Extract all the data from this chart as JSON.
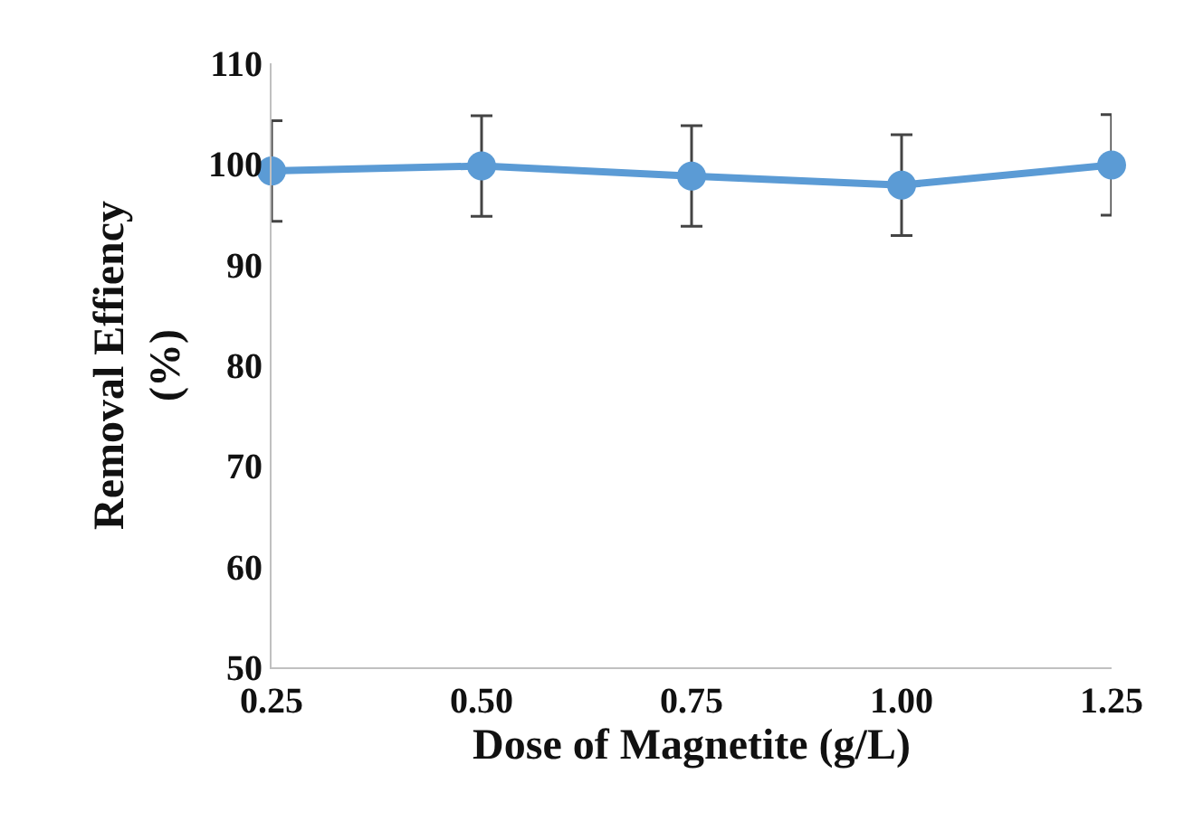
{
  "chart_data": {
    "type": "line",
    "xlabel": "Dose of Magnetite (g/L)",
    "ylabel": "Removal Effiency\n(%)",
    "x": [
      0.25,
      0.5,
      0.75,
      1.0,
      1.25
    ],
    "series": [
      {
        "color": "#5b9bd5",
        "values": [
          99.3,
          99.8,
          98.8,
          97.9,
          99.9
        ],
        "errors": [
          5,
          5,
          5,
          5,
          5
        ]
      }
    ],
    "xlim": [
      0.25,
      1.25
    ],
    "xticks": [
      {
        "value": 0.25,
        "label": "0.25"
      },
      {
        "value": 0.5,
        "label": "0.50"
      },
      {
        "value": 0.75,
        "label": "0.75"
      },
      {
        "value": 1.0,
        "label": "1.00"
      },
      {
        "value": 1.25,
        "label": "1.25"
      }
    ],
    "ylim": [
      50,
      110
    ],
    "yticks": [
      50,
      60,
      70,
      80,
      90,
      100,
      110
    ],
    "marker": "circle",
    "line_style": "solid"
  }
}
